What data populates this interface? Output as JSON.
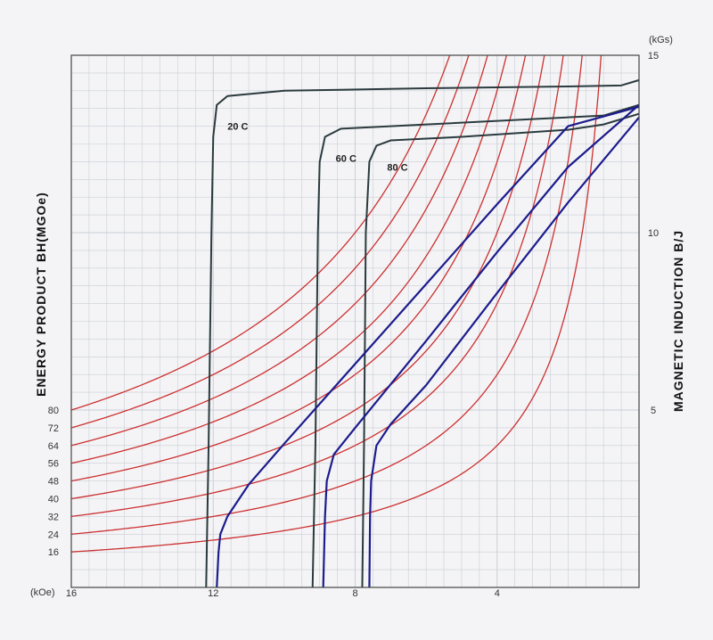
{
  "chart_data": {
    "type": "line",
    "title": "",
    "left_ylabel": "ENERGY PRODUCT BH(MGOe)",
    "right_ylabel": "MAGNETIC INDUCTION B/J",
    "x_unit": "(kOe)",
    "y_unit": "(kGs)",
    "xlim": [
      16,
      0
    ],
    "ylim": [
      0,
      15
    ],
    "x_ticks": [
      16,
      12,
      8,
      4
    ],
    "y_ticks": [
      5,
      10,
      15
    ],
    "bh_labels": [
      16,
      24,
      32,
      40,
      48,
      56,
      64,
      72,
      80
    ],
    "grid": true,
    "colors": {
      "intrinsic": "#2a3a3e",
      "normal": "#1c1c8c",
      "energy_product": "#cc3030",
      "grid": "#c9ced6"
    },
    "series": [
      {
        "name": "20 C",
        "kind": "intrinsic",
        "points": [
          [
            12.2,
            0
          ],
          [
            12.13,
            4
          ],
          [
            12.05,
            10
          ],
          [
            12,
            12.7
          ],
          [
            11.9,
            13.6
          ],
          [
            11.6,
            13.85
          ],
          [
            10,
            14.0
          ],
          [
            6,
            14.07
          ],
          [
            2,
            14.12
          ],
          [
            0.5,
            14.15
          ],
          [
            0,
            14.3
          ]
        ]
      },
      {
        "name": "60 C",
        "kind": "intrinsic",
        "points": [
          [
            9.2,
            0
          ],
          [
            9.12,
            4
          ],
          [
            9.05,
            10
          ],
          [
            9,
            12.0
          ],
          [
            8.85,
            12.7
          ],
          [
            8.4,
            12.93
          ],
          [
            6,
            13.05
          ],
          [
            3,
            13.2
          ],
          [
            1,
            13.3
          ],
          [
            0,
            13.6
          ]
        ]
      },
      {
        "name": "80 C",
        "kind": "intrinsic",
        "points": [
          [
            7.8,
            0
          ],
          [
            7.75,
            4
          ],
          [
            7.7,
            10
          ],
          [
            7.6,
            12.0
          ],
          [
            7.4,
            12.45
          ],
          [
            7.0,
            12.6
          ],
          [
            5,
            12.7
          ],
          [
            2,
            12.9
          ],
          [
            1,
            13.05
          ],
          [
            0,
            13.35
          ]
        ]
      },
      {
        "name": "",
        "kind": "normal",
        "points": [
          [
            11.9,
            0
          ],
          [
            11.85,
            1
          ],
          [
            11.8,
            1.5
          ],
          [
            11.6,
            2
          ],
          [
            11,
            2.9
          ],
          [
            10,
            4.05
          ],
          [
            8,
            6.3
          ],
          [
            6,
            8.55
          ],
          [
            4,
            10.8
          ],
          [
            2,
            13.0
          ],
          [
            0,
            13.55
          ]
        ]
      },
      {
        "name": "",
        "kind": "normal",
        "points": [
          [
            8.9,
            0
          ],
          [
            8.85,
            2
          ],
          [
            8.8,
            3
          ],
          [
            8.6,
            3.75
          ],
          [
            8,
            4.5
          ],
          [
            6,
            6.95
          ],
          [
            4,
            9.45
          ],
          [
            2,
            11.85
          ],
          [
            0,
            13.6
          ]
        ]
      },
      {
        "name": "",
        "kind": "normal",
        "points": [
          [
            7.6,
            0
          ],
          [
            7.58,
            2
          ],
          [
            7.55,
            3
          ],
          [
            7.4,
            4
          ],
          [
            7,
            4.6
          ],
          [
            6,
            5.7
          ],
          [
            4,
            8.3
          ],
          [
            2,
            10.85
          ],
          [
            0,
            13.25
          ]
        ]
      }
    ]
  }
}
